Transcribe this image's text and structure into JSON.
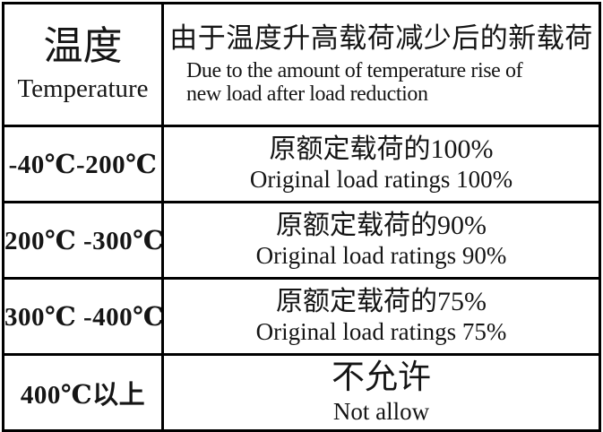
{
  "table": {
    "header": {
      "temp_zh": "温度",
      "temp_en": "Temperature",
      "load_zh": "由于温度升高载荷减少后的新载荷",
      "load_en_line1": "Due to the amount of temperature rise of",
      "load_en_line2": "new load after load reduction"
    },
    "rows": [
      {
        "temp": "-40℃-200℃",
        "zh": "原额定载荷的100%",
        "en": "Original load ratings 100%"
      },
      {
        "temp": "200℃ -300℃",
        "zh": "原额定载荷的90%",
        "en": "Original load ratings 90%"
      },
      {
        "temp": "300℃ -400℃",
        "zh": "原额定载荷的75%",
        "en": "Original load ratings 75%"
      },
      {
        "temp": "400℃以上",
        "zh": "不允许",
        "en": "Not allow"
      }
    ]
  },
  "colors": {
    "border": "#000000",
    "text": "#151515",
    "background": "#ffffff"
  }
}
